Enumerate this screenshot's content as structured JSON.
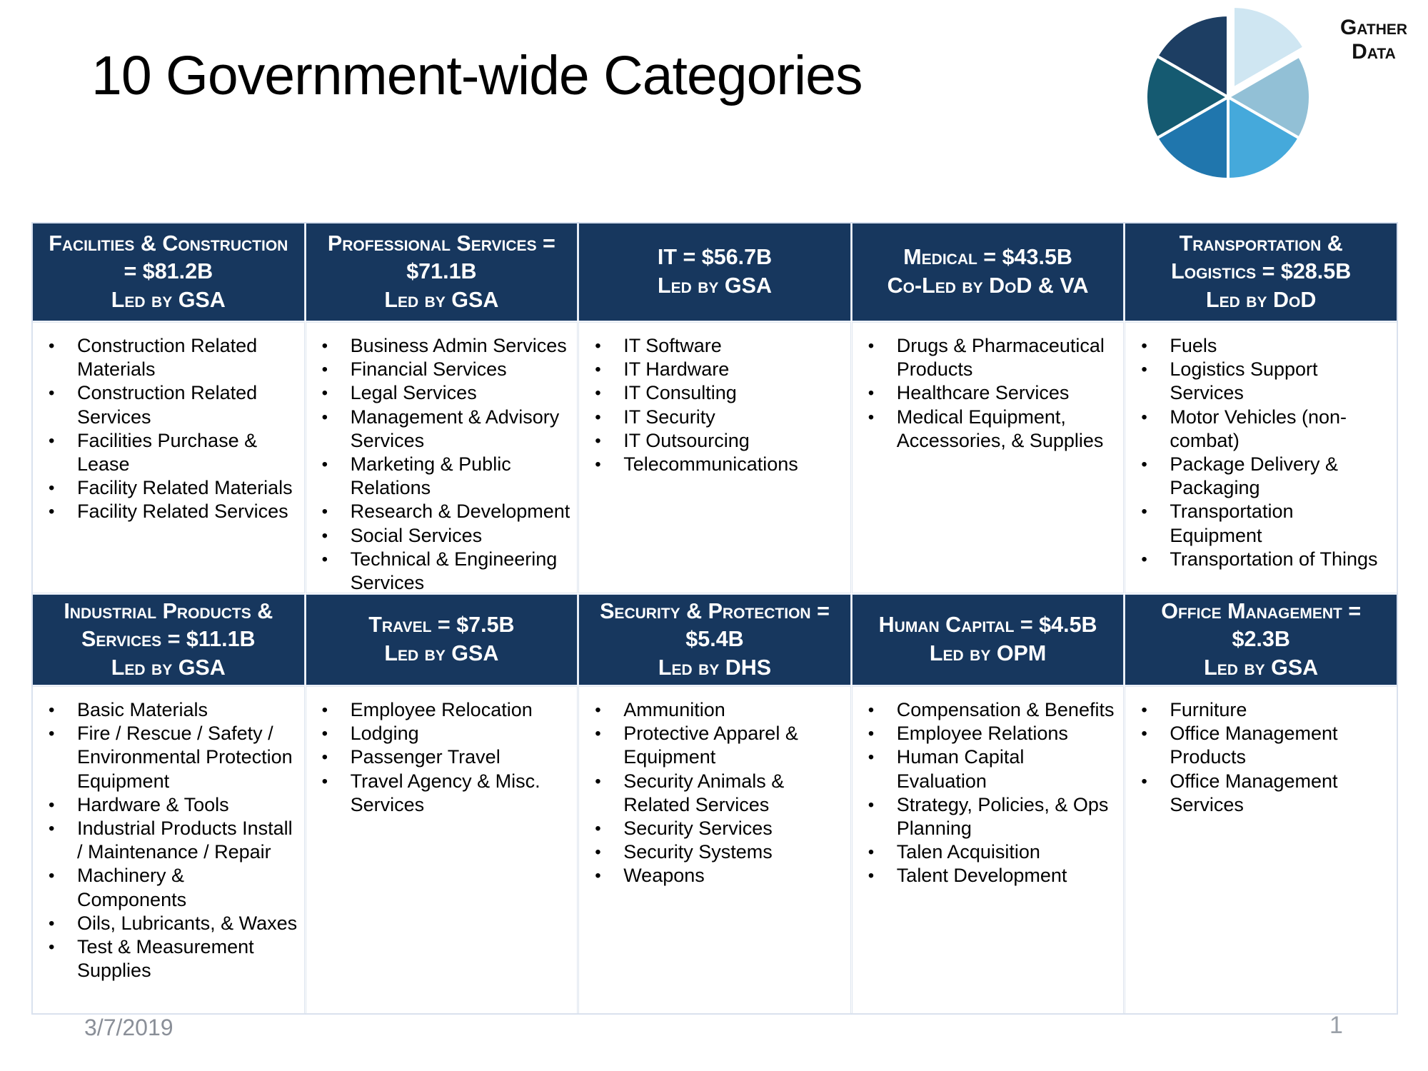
{
  "slide": {
    "title": "10 Government-wide Categories",
    "footer": {
      "date": "3/7/2019",
      "page_number": "1"
    }
  },
  "logo": {
    "text_line1": "Gather",
    "text_line2": "Data",
    "pie_slice_colors": [
      "#cfe6f2",
      "#92c0d6",
      "#45a9db",
      "#2076ad",
      "#155a71",
      "#1d3e63"
    ]
  },
  "colors": {
    "header_background": "#17375e",
    "header_text": "#ffffff",
    "table_border": "#d6dfee",
    "footer_text": "#8a8f98"
  },
  "table": {
    "rows": [
      {
        "categories": [
          {
            "name_value": "Facilities & Construction = $81.2B",
            "led_by": "Led by GSA",
            "items": [
              "Construction Related Materials",
              "Construction Related Services",
              "Facilities Purchase & Lease",
              "Facility Related Materials",
              "Facility Related Services"
            ]
          },
          {
            "name_value": "Professional Services = $71.1B",
            "led_by": "Led by GSA",
            "items": [
              "Business Admin Services",
              "Financial Services",
              "Legal Services",
              "Management & Advisory Services",
              "Marketing & Public Relations",
              "Research & Development",
              "Social Services",
              "Technical & Engineering Services"
            ]
          },
          {
            "name_value": "IT = $56.7B",
            "led_by": "Led by GSA",
            "items": [
              "IT Software",
              "IT Hardware",
              "IT Consulting",
              "IT Security",
              "IT Outsourcing",
              "Telecommunications"
            ]
          },
          {
            "name_value": "Medical = $43.5B",
            "led_by": "Co-Led by DoD & VA",
            "items": [
              "Drugs & Pharmaceutical Products",
              "Healthcare Services",
              "Medical Equipment, Accessories, & Supplies"
            ]
          },
          {
            "name_value": "Transportation & Logistics = $28.5B",
            "led_by": "Led by DoD",
            "items": [
              "Fuels",
              "Logistics Support Services",
              "Motor Vehicles (non-combat)",
              "Package Delivery & Packaging",
              "Transportation Equipment",
              "Transportation of Things"
            ]
          }
        ]
      },
      {
        "categories": [
          {
            "name_value": "Industrial Products & Services = $11.1B",
            "led_by": "Led by GSA",
            "items": [
              "Basic Materials",
              "Fire / Rescue / Safety / Environmental Protection Equipment",
              "Hardware & Tools",
              "Industrial Products Install / Maintenance / Repair",
              "Machinery & Components",
              "Oils, Lubricants, & Waxes",
              "Test & Measurement Supplies"
            ]
          },
          {
            "name_value": "Travel = $7.5B",
            "led_by": "Led by GSA",
            "items": [
              "Employee Relocation",
              "Lodging",
              "Passenger Travel",
              "Travel Agency & Misc. Services"
            ]
          },
          {
            "name_value": "Security & Protection = $5.4B",
            "led_by": "Led by DHS",
            "items": [
              "Ammunition",
              "Protective Apparel & Equipment",
              "Security Animals & Related Services",
              "Security Services",
              "Security Systems",
              "Weapons"
            ]
          },
          {
            "name_value": "Human Capital = $4.5B",
            "led_by": "Led by OPM",
            "items": [
              "Compensation & Benefits",
              "Employee Relations",
              "Human Capital Evaluation",
              "Strategy, Policies, & Ops Planning",
              "Talen Acquisition",
              "Talent Development"
            ]
          },
          {
            "name_value": "Office Management = $2.3B",
            "led_by": "Led by GSA",
            "items": [
              "Furniture",
              "Office Management Products",
              "Office Management Services"
            ]
          }
        ]
      }
    ]
  }
}
